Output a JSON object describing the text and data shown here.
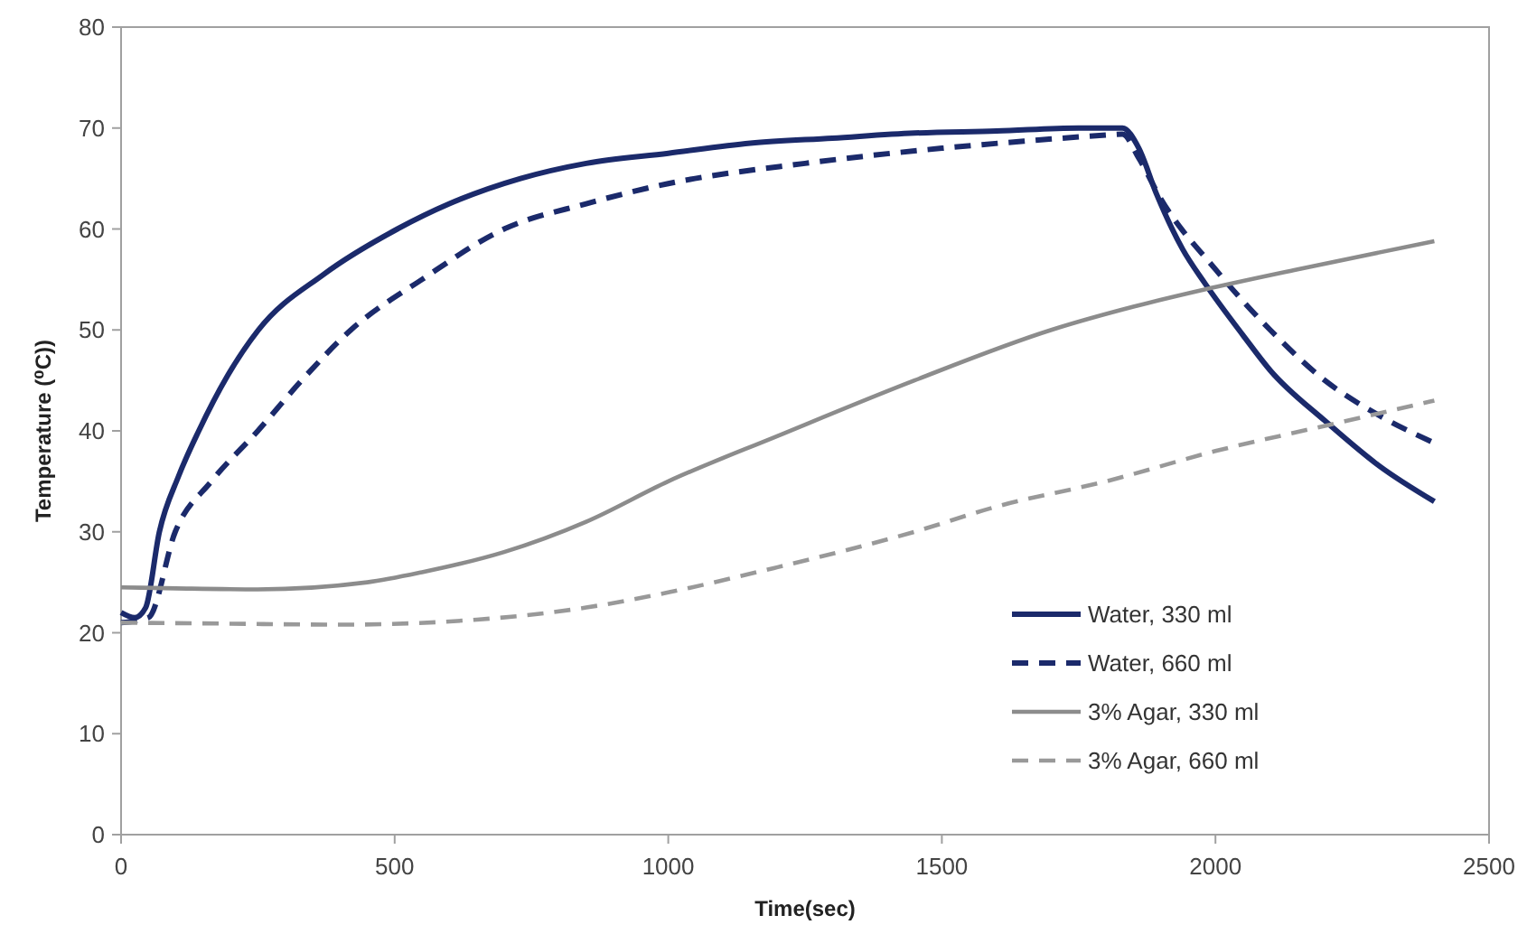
{
  "chart_data": {
    "type": "line",
    "xlabel": "Time(sec)",
    "ylabel": "Temperature (⁰C))",
    "xlim": [
      0,
      2500
    ],
    "ylim": [
      0,
      80
    ],
    "xticks": [
      0,
      500,
      1000,
      1500,
      2000,
      2500
    ],
    "yticks": [
      0,
      10,
      20,
      30,
      40,
      50,
      60,
      70,
      80
    ],
    "grid": false,
    "legend": "bottom right",
    "marker": "none",
    "series": [
      {
        "name": "Water, 330 ml",
        "color": "#1b2a6b",
        "line_style": "solid",
        "x": [
          0,
          25,
          45,
          70,
          105,
          142,
          195,
          251,
          370,
          505,
          600,
          730,
          850,
          1000,
          1150,
          1300,
          1450,
          1600,
          1750,
          1800,
          1830,
          1860,
          1892,
          1940,
          1981,
          2050,
          2100,
          2200,
          2300,
          2400
        ],
        "values": [
          22,
          21.5,
          22.5,
          30,
          35.5,
          40,
          45.5,
          50,
          55.5,
          60,
          62.5,
          65,
          66.5,
          67.5,
          68.5,
          69,
          69.5,
          69.7,
          70,
          70,
          70,
          68,
          63.5,
          58,
          54.6,
          49.5,
          46,
          41,
          36.5,
          33
        ]
      },
      {
        "name": "Water, 660 ml",
        "color": "#1b2a6b",
        "line_style": "dashed",
        "x": [
          0,
          50,
          99,
          165,
          250,
          330,
          420,
          550,
          700,
          850,
          1000,
          1250,
          1500,
          1650,
          1800,
          1830,
          1860,
          1900,
          2000,
          2100,
          2200,
          2300,
          2400
        ],
        "values": [
          21,
          21.5,
          30,
          35,
          40,
          45,
          50,
          55,
          60,
          62.5,
          64.5,
          66.5,
          68,
          68.7,
          69.3,
          69.4,
          67,
          63,
          56,
          50,
          45,
          41.5,
          38.8
        ]
      },
      {
        "name": "3% Agar, 330 ml",
        "color": "#8c8c8c",
        "line_style": "solid",
        "x": [
          0,
          100,
          250,
          450,
          550,
          700,
          850,
          1000,
          1200,
          1450,
          1700,
          1850,
          1980,
          2150,
          2400
        ],
        "values": [
          24.5,
          24.4,
          24.3,
          25,
          26,
          28,
          31,
          35,
          39.5,
          45,
          50,
          52.3,
          54,
          56,
          58.8
        ]
      },
      {
        "name": "3% Agar, 660 ml",
        "color": "#999999",
        "line_style": "dashed",
        "x": [
          0,
          200,
          400,
          650,
          850,
          1000,
          1200,
          1450,
          1600,
          1800,
          2000,
          2200,
          2400
        ],
        "values": [
          21,
          20.9,
          20.8,
          21.3,
          22.5,
          24,
          26.5,
          30,
          32.5,
          35,
          38,
          40.5,
          43
        ]
      }
    ]
  }
}
